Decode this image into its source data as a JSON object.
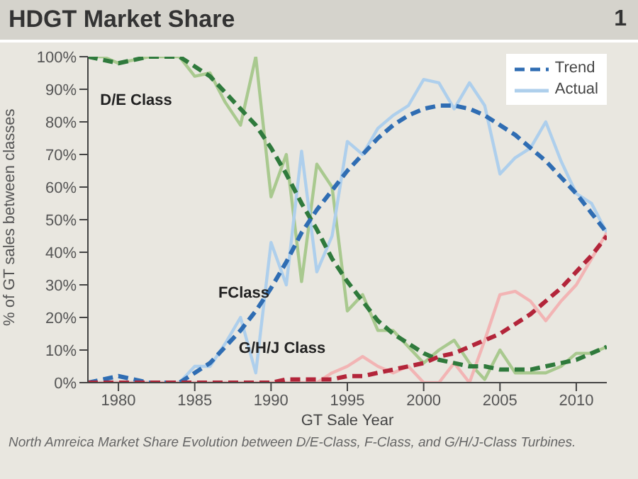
{
  "chart_data": {
    "type": "line",
    "title": "HDGT Market Share",
    "xlabel": "GT Sale Year",
    "ylabel": "% of GT sales between classes",
    "annotations": [
      "1",
      "D/E Class",
      "FClass",
      "G/H/J Class",
      "North Amreica Market Share Evolution between D/E-Class, F-Class, and G/H/J-Class Turbines."
    ],
    "x": [
      1978,
      1979,
      1980,
      1981,
      1982,
      1983,
      1984,
      1985,
      1986,
      1987,
      1988,
      1989,
      1990,
      1991,
      1992,
      1993,
      1994,
      1995,
      1996,
      1997,
      1998,
      1999,
      2000,
      2001,
      2002,
      2003,
      2004,
      2005,
      2006,
      2007,
      2008,
      2009,
      2010,
      2011,
      2012
    ],
    "series": [
      {
        "color": "#a9c98f",
        "line_style": "solid",
        "values": [
          100,
          100,
          98,
          99,
          100,
          100,
          100,
          94,
          95,
          86,
          79,
          100,
          57,
          70,
          31,
          67,
          60,
          22,
          27,
          16,
          16,
          11,
          6,
          10,
          13,
          6,
          1,
          10,
          3,
          3,
          3,
          5,
          9,
          9,
          11
        ]
      },
      {
        "name": "Actual",
        "color": "#aecfec",
        "line_style": "solid",
        "values": [
          0,
          0,
          0,
          0,
          0,
          0,
          0,
          5,
          5,
          12,
          20,
          3,
          43,
          30,
          71,
          34,
          45,
          74,
          70,
          78,
          82,
          85,
          93,
          92,
          84,
          92,
          85,
          64,
          69,
          72,
          80,
          68,
          58,
          55,
          46
        ]
      },
      {
        "color": "#f2b4b4",
        "line_style": "solid",
        "values": [
          0,
          0,
          0,
          0,
          0,
          0,
          0,
          0,
          0,
          0,
          0,
          0,
          0,
          0,
          0,
          0,
          3,
          5,
          8,
          5,
          3,
          5,
          0,
          0,
          6,
          0,
          13,
          27,
          28,
          25,
          19,
          25,
          30,
          38,
          46
        ]
      },
      {
        "color": "#2f7a3c",
        "line_style": "dashed",
        "values": [
          100,
          99,
          98,
          99,
          100,
          100,
          100,
          97,
          94,
          89,
          84,
          79,
          72,
          64,
          55,
          47,
          38,
          31,
          25,
          19,
          15,
          12,
          9,
          7,
          6,
          5,
          5,
          4,
          4,
          4,
          5,
          6,
          7,
          9,
          11
        ]
      },
      {
        "name": "Trend",
        "color": "#2f6db3",
        "line_style": "dashed",
        "values": [
          0,
          1,
          2,
          1,
          0,
          0,
          0,
          3,
          6,
          11,
          16,
          22,
          29,
          37,
          46,
          53,
          59,
          65,
          70,
          75,
          79,
          82,
          84,
          85,
          85,
          84,
          82,
          79,
          76,
          72,
          68,
          63,
          58,
          52,
          46
        ]
      },
      {
        "color": "#b3253a",
        "line_style": "dashed",
        "values": [
          0,
          0,
          0,
          0,
          0,
          0,
          0,
          0,
          0,
          0,
          0,
          0,
          0,
          1,
          1,
          1,
          1,
          2,
          2,
          3,
          4,
          5,
          6,
          8,
          9,
          11,
          13,
          15,
          18,
          21,
          25,
          29,
          34,
          39,
          45
        ]
      }
    ],
    "xlim": [
      1978,
      2012
    ],
    "xticks": [
      1980,
      1985,
      1990,
      1995,
      2000,
      2005,
      2010
    ],
    "ylim": [
      0,
      100
    ],
    "yticks": [
      {
        "value": 0,
        "label": "0%"
      },
      {
        "value": 10,
        "label": "10%"
      },
      {
        "value": 20,
        "label": "20%"
      },
      {
        "value": 30,
        "label": "30%"
      },
      {
        "value": 40,
        "label": "40%"
      },
      {
        "value": 50,
        "label": "50%"
      },
      {
        "value": 60,
        "label": "60%"
      },
      {
        "value": 70,
        "label": "70%"
      },
      {
        "value": 80,
        "label": "80%"
      },
      {
        "value": 90,
        "label": "90%"
      },
      {
        "value": 100,
        "label": "100%"
      }
    ],
    "grid": false,
    "legend": "top right",
    "marker": "none"
  }
}
